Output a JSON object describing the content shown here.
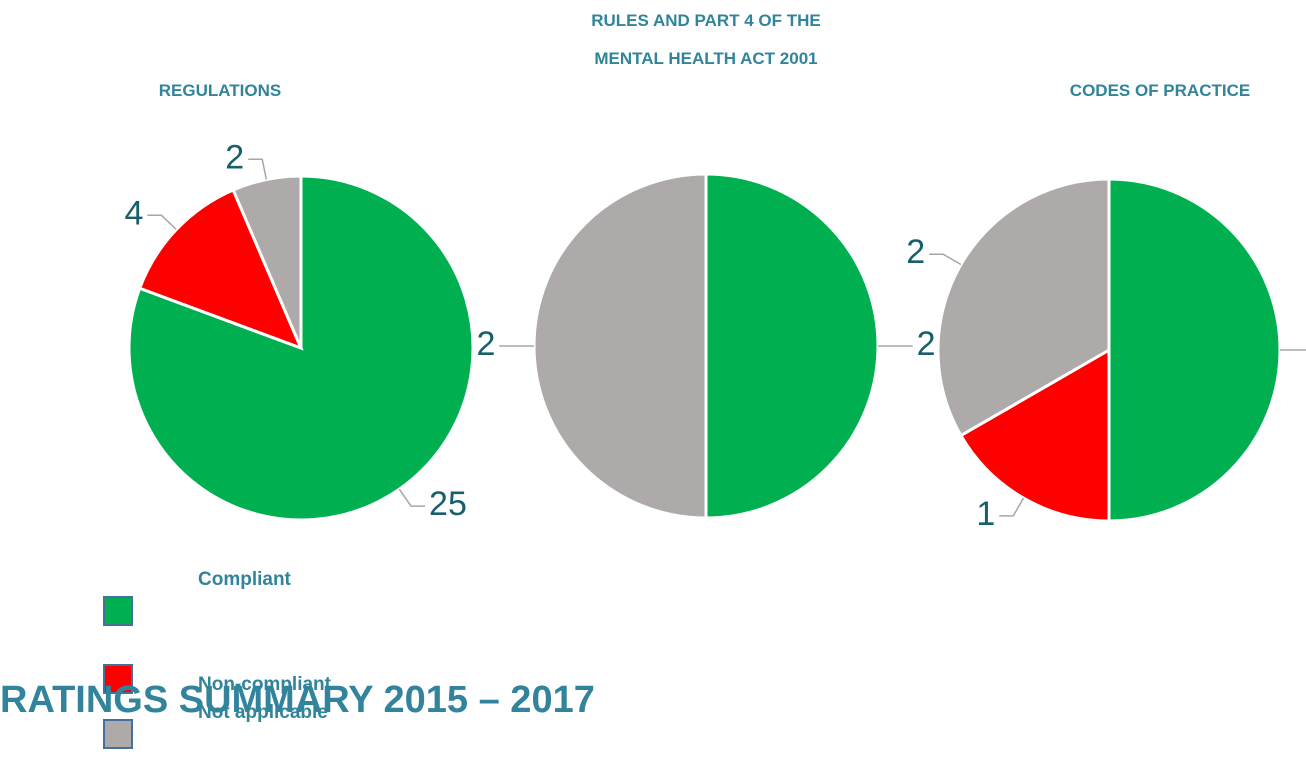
{
  "heading": "RATINGS SUMMARY 2015 – 2017",
  "chart_data": [
    {
      "type": "pie",
      "title": "REGULATIONS",
      "categories": [
        "Compliant",
        "Non-compliant",
        "Not applicable"
      ],
      "values": [
        25,
        4,
        2
      ],
      "colors": [
        "#00b050",
        "#ff0000",
        "#aeaaaa"
      ]
    },
    {
      "type": "pie",
      "title": [
        "RULES AND PART 4 OF THE",
        "MENTAL HEALTH ACT 2001"
      ],
      "categories": [
        "Compliant",
        "Not applicable"
      ],
      "values": [
        2,
        2
      ],
      "colors": [
        "#00b050",
        "#aeaaaa"
      ]
    },
    {
      "type": "pie",
      "title": "CODES OF PRACTICE",
      "categories": [
        "Compliant",
        "Non-compliant",
        "Not applicable"
      ],
      "values": [
        3,
        1,
        2
      ],
      "colors": [
        "#00b050",
        "#ff0000",
        "#aeaaaa"
      ]
    }
  ]
}
